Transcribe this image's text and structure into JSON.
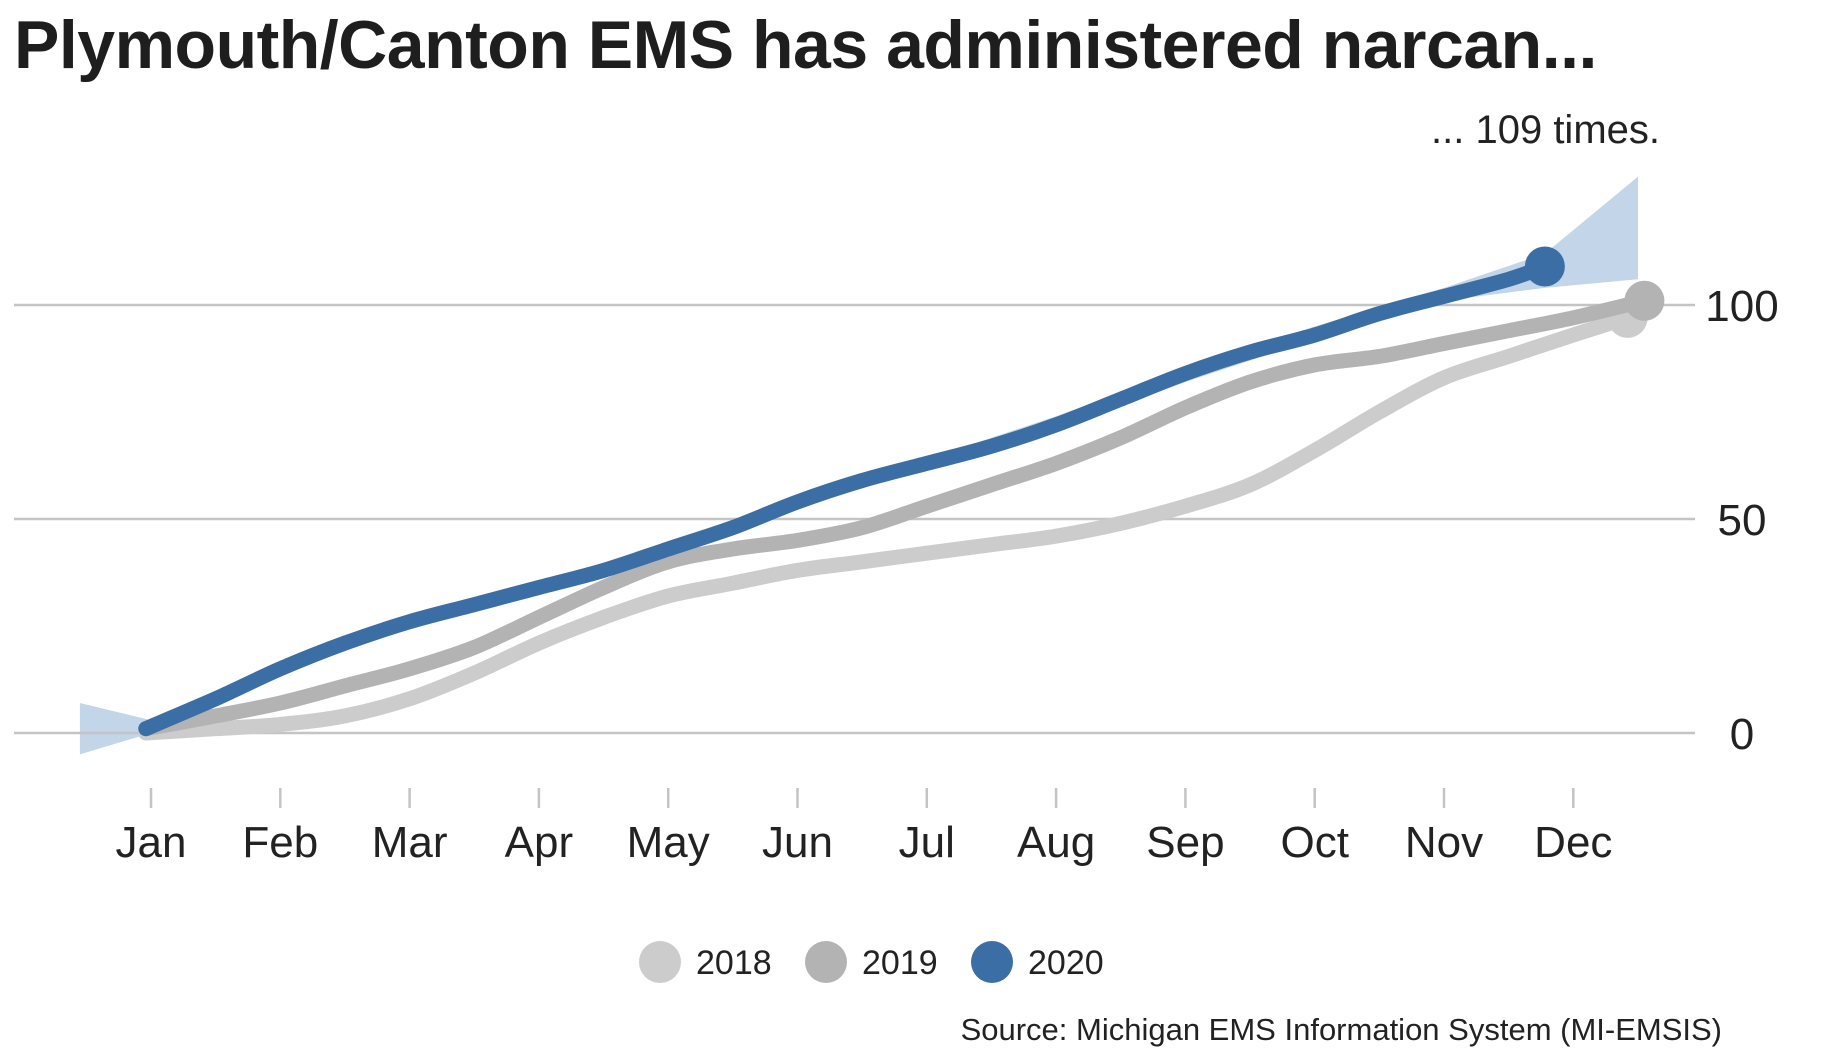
{
  "chart_data": {
    "type": "line",
    "title": "Plymouth/Canton EMS has administered narcan...",
    "annotation": "... 109 times.",
    "source": "Source: Michigan EMS Information System (MI-EMSIS)",
    "xlabel": "",
    "ylabel": "",
    "x_ticks": [
      "Jan",
      "Feb",
      "Mar",
      "Apr",
      "May",
      "Jun",
      "Jul",
      "Aug",
      "Sep",
      "Oct",
      "Nov",
      "Dec"
    ],
    "y_ticks": [
      0,
      50,
      100
    ],
    "ylim": [
      -13,
      134
    ],
    "xlim": [
      0.45,
      13.0
    ],
    "grid": "horizontal",
    "y_axis_position": "right",
    "legend_position": "bottom-center",
    "series": [
      {
        "name": "2018",
        "color": "#cccccc",
        "x": [
          0.96,
          1.5,
          2,
          2.5,
          3,
          3.5,
          4,
          4.5,
          5,
          5.5,
          6,
          6.5,
          7,
          7.5,
          8,
          8.5,
          9,
          9.5,
          10,
          10.5,
          11,
          11.5,
          12,
          12.42
        ],
        "y": [
          0,
          1,
          2,
          4,
          8,
          14,
          21,
          27,
          32,
          35,
          38,
          40,
          42,
          44,
          46,
          49,
          53,
          58,
          66,
          75,
          83,
          88,
          93,
          97
        ]
      },
      {
        "name": "2019",
        "color": "#b3b3b3",
        "x": [
          0.96,
          1.5,
          2,
          2.5,
          3,
          3.5,
          4,
          4.5,
          5,
          5.5,
          6,
          6.5,
          7,
          7.5,
          8,
          8.5,
          9,
          9.5,
          10,
          10.5,
          11,
          11.5,
          12,
          12.55
        ],
        "y": [
          1,
          4,
          7,
          11,
          15,
          20,
          27,
          34,
          40,
          43,
          45,
          48,
          53,
          58,
          63,
          69,
          76,
          82,
          86,
          88,
          91,
          94,
          97,
          101
        ]
      },
      {
        "name": "2020",
        "color": "#3a6ea5",
        "x": [
          0.96,
          1.5,
          2,
          2.5,
          3,
          3.5,
          4,
          4.5,
          5,
          5.5,
          6,
          6.5,
          7,
          7.5,
          8,
          8.5,
          9,
          9.5,
          10,
          10.5,
          11,
          11.5,
          11.78
        ],
        "y": [
          1,
          8,
          15,
          21,
          26,
          30,
          34,
          38,
          43,
          48,
          54,
          59,
          63,
          67,
          72,
          78,
          84,
          89,
          93,
          98,
          102,
          106,
          109
        ]
      }
    ],
    "forecast_band": {
      "color": "#c3d5e8",
      "x": [
        0.45,
        1,
        2,
        3,
        4,
        5,
        6,
        7,
        8,
        9,
        10,
        11,
        11.78,
        12.5
      ],
      "upper": [
        7,
        3,
        15,
        27,
        34,
        43,
        55,
        64,
        74,
        85,
        95,
        104,
        112,
        130
      ],
      "lower": [
        -5,
        0,
        14,
        25,
        33,
        42,
        53,
        62,
        71,
        82,
        92,
        101,
        104,
        106
      ]
    }
  }
}
